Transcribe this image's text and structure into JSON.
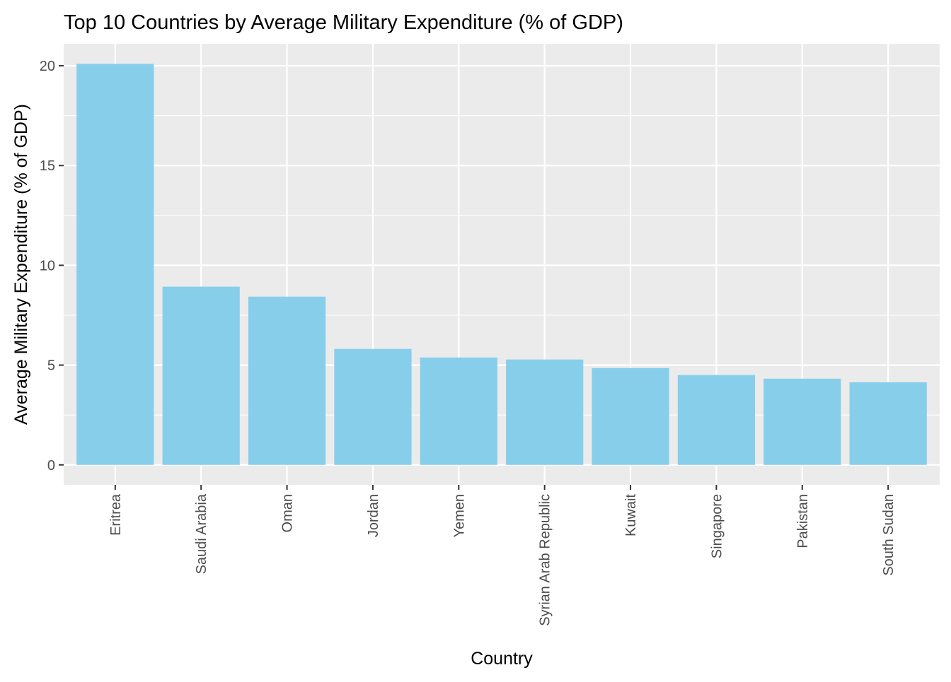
{
  "chart_data": {
    "type": "bar",
    "title": "Top 10 Countries by Average Military Expenditure (% of GDP)",
    "xlabel": "Country",
    "ylabel": "Average Military Expenditure (% of GDP)",
    "categories": [
      "Eritrea",
      "Saudi Arabia",
      "Oman",
      "Jordan",
      "Yemen",
      "Syrian Arab Republic",
      "Kuwait",
      "Singapore",
      "Pakistan",
      "South Sudan"
    ],
    "values": [
      20.1,
      8.93,
      8.43,
      5.81,
      5.38,
      5.28,
      4.85,
      4.5,
      4.32,
      4.14
    ],
    "ylim": [
      -1.0,
      21.1
    ],
    "yticks": [
      0,
      5,
      10,
      15,
      20
    ],
    "ytick_labels": [
      "0",
      "5",
      "10",
      "15",
      "20"
    ],
    "grid": true,
    "colors": {
      "bar": "#87CEEB",
      "panel": "#EBEBEB",
      "grid": "#FFFFFF",
      "axis_text": "#4D4D4D",
      "tick": "#333333",
      "title": "#000000"
    }
  }
}
